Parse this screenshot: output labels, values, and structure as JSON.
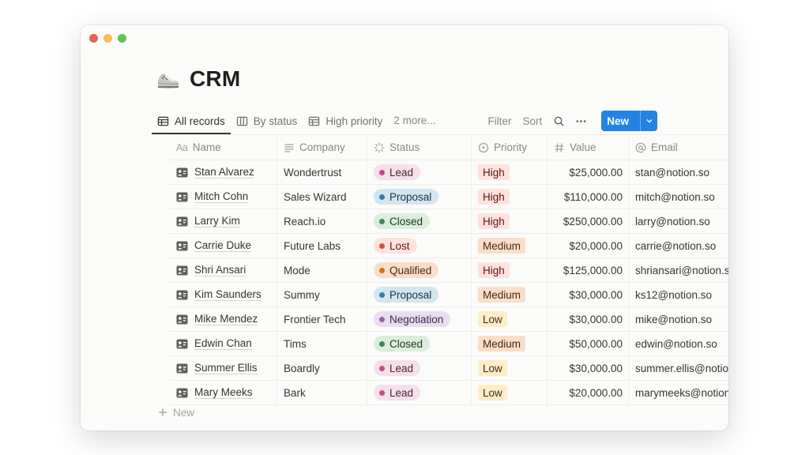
{
  "page": {
    "title": "CRM",
    "icon": "running-shoe-icon"
  },
  "views": {
    "tabs": [
      {
        "label": "All records",
        "icon": "table-icon",
        "active": true
      },
      {
        "label": "By status",
        "icon": "board-icon",
        "active": false
      },
      {
        "label": "High priority",
        "icon": "table-icon",
        "active": false
      }
    ],
    "more_label": "2 more..."
  },
  "toolbar": {
    "filter_label": "Filter",
    "sort_label": "Sort",
    "search_icon": "search-icon",
    "more_icon": "ellipsis-icon",
    "new_label": "New",
    "new_color": "#2383e2"
  },
  "table": {
    "columns": [
      {
        "key": "name",
        "label": "Name",
        "icon": "aa-text-icon"
      },
      {
        "key": "company",
        "label": "Company",
        "icon": "lines-icon"
      },
      {
        "key": "status",
        "label": "Status",
        "icon": "status-spinner-icon"
      },
      {
        "key": "priority",
        "label": "Priority",
        "icon": "select-circle-icon"
      },
      {
        "key": "value",
        "label": "Value",
        "icon": "hash-icon"
      },
      {
        "key": "email",
        "label": "Email",
        "icon": "at-icon"
      }
    ],
    "rows": [
      {
        "name": "Stan Alvarez",
        "company": "Wondertrust",
        "status": "Lead",
        "priority": "High",
        "value": "$25,000.00",
        "email": "stan@notion.so"
      },
      {
        "name": "Mitch Cohn",
        "company": "Sales Wizard",
        "status": "Proposal",
        "priority": "High",
        "value": "$110,000.00",
        "email": "mitch@notion.so"
      },
      {
        "name": "Larry Kim",
        "company": "Reach.io",
        "status": "Closed",
        "priority": "High",
        "value": "$250,000.00",
        "email": "larry@notion.so"
      },
      {
        "name": "Carrie Duke",
        "company": "Future Labs",
        "status": "Lost",
        "priority": "Medium",
        "value": "$20,000.00",
        "email": "carrie@notion.so"
      },
      {
        "name": "Shri Ansari",
        "company": "Mode",
        "status": "Qualified",
        "priority": "High",
        "value": "$125,000.00",
        "email": "shriansari@notion.so"
      },
      {
        "name": "Kim Saunders",
        "company": "Summy",
        "status": "Proposal",
        "priority": "Medium",
        "value": "$30,000.00",
        "email": "ks12@notion.so"
      },
      {
        "name": "Mike Mendez",
        "company": "Frontier Tech",
        "status": "Negotiation",
        "priority": "Low",
        "value": "$30,000.00",
        "email": "mike@notion.so"
      },
      {
        "name": "Edwin Chan",
        "company": "Tims",
        "status": "Closed",
        "priority": "Medium",
        "value": "$50,000.00",
        "email": "edwin@notion.so"
      },
      {
        "name": "Summer Ellis",
        "company": "Boardly",
        "status": "Lead",
        "priority": "Low",
        "value": "$30,000.00",
        "email": "summer.ellis@notion.so"
      },
      {
        "name": "Mary Meeks",
        "company": "Bark",
        "status": "Lead",
        "priority": "Low",
        "value": "$20,000.00",
        "email": "marymeeks@notion.so"
      }
    ],
    "add_row_label": "New"
  },
  "status_colors": {
    "Lead": {
      "bg": "#f5e0e9",
      "dot": "#c14c8a",
      "text": "#4c2337"
    },
    "Proposal": {
      "bg": "#d3e5ef",
      "dot": "#337ea9",
      "text": "#183347"
    },
    "Closed": {
      "bg": "#dbeddb",
      "dot": "#448361",
      "text": "#1c3829"
    },
    "Lost": {
      "bg": "#ffe2dd",
      "dot": "#d44c47",
      "text": "#5d1715"
    },
    "Qualified": {
      "bg": "#fadec9",
      "dot": "#d9730d",
      "text": "#49290e"
    },
    "Negotiation": {
      "bg": "#e8deee",
      "dot": "#9065b0",
      "text": "#412454"
    }
  },
  "priority_colors": {
    "High": {
      "bg": "#ffe2dd",
      "text": "#5d1715"
    },
    "Medium": {
      "bg": "#fadec9",
      "text": "#49290e"
    },
    "Low": {
      "bg": "#fdecc8",
      "text": "#402c1b"
    }
  }
}
